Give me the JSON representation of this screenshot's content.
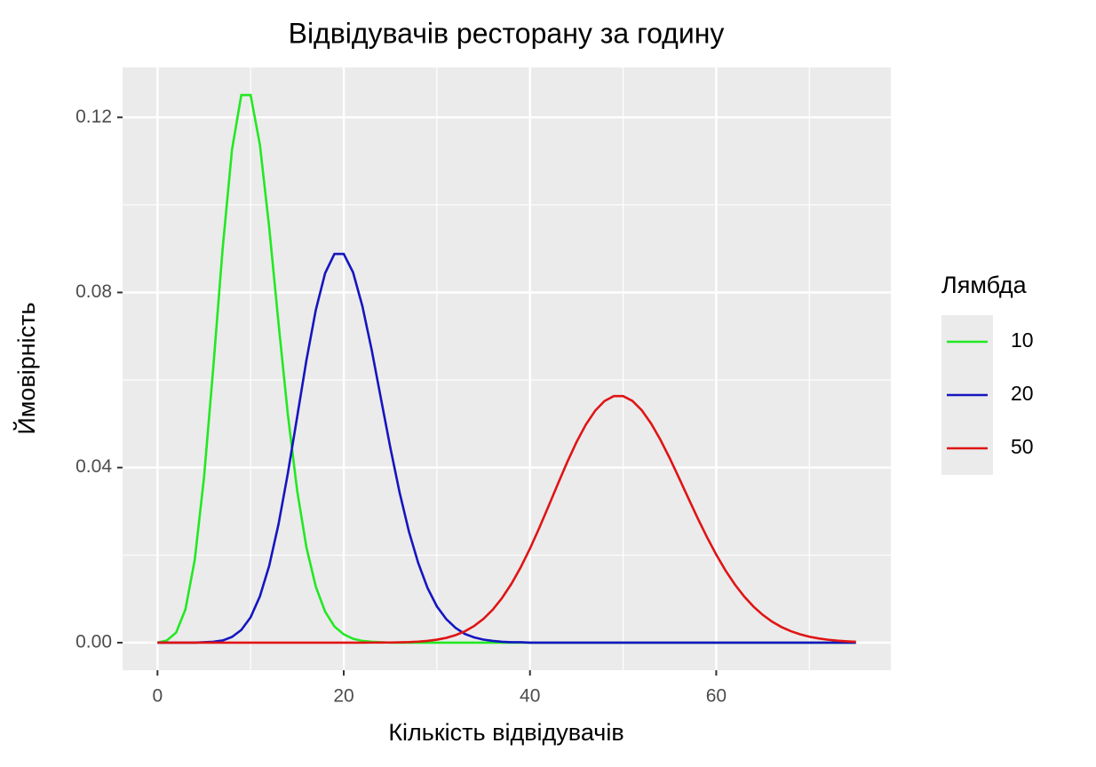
{
  "chart_data": {
    "type": "line",
    "title": "Відвідувачів ресторану за годину",
    "x_label": "Кількість відвідувачів",
    "y_label": "Ймовірність",
    "legend_title": "Лямбда",
    "legend_position": "right",
    "grid": true,
    "panel_color": "#ebebeb",
    "xlim": [
      -3.75,
      78.75
    ],
    "ylim": [
      -0.0063,
      0.1314
    ],
    "xticks": [
      0,
      20,
      40,
      60
    ],
    "xminor": [
      10,
      30,
      50,
      70
    ],
    "yticks": [
      {
        "value": 0,
        "label": "0.00"
      },
      {
        "value": 0.04,
        "label": "0.04"
      },
      {
        "value": 0.08,
        "label": "0.08"
      },
      {
        "value": 0.12,
        "label": "0.12"
      }
    ],
    "yminor": [
      0.02,
      0.06,
      0.1
    ],
    "x": [
      0,
      1,
      2,
      3,
      4,
      5,
      6,
      7,
      8,
      9,
      10,
      11,
      12,
      13,
      14,
      15,
      16,
      17,
      18,
      19,
      20,
      21,
      22,
      23,
      24,
      25,
      26,
      27,
      28,
      29,
      30,
      31,
      32,
      33,
      34,
      35,
      36,
      37,
      38,
      39,
      40,
      41,
      42,
      43,
      44,
      45,
      46,
      47,
      48,
      49,
      50,
      51,
      52,
      53,
      54,
      55,
      56,
      57,
      58,
      59,
      60,
      61,
      62,
      63,
      64,
      65,
      66,
      67,
      68,
      69,
      70,
      71,
      72,
      73,
      74,
      75
    ],
    "series": [
      {
        "name": "10",
        "color": "#22e822",
        "values": [
          0,
          0.0005,
          0.0023,
          0.0076,
          0.0189,
          0.0378,
          0.0631,
          0.0901,
          0.1126,
          0.1251,
          0.1251,
          0.1137,
          0.0948,
          0.0729,
          0.0521,
          0.0347,
          0.0217,
          0.0128,
          0.0071,
          0.0037,
          0.0019,
          0.0009,
          0.0004,
          0.0002,
          0.0001,
          0,
          0,
          0,
          0,
          0,
          0,
          0,
          0,
          0,
          0,
          0,
          0,
          0,
          0,
          0,
          0,
          0,
          0,
          0,
          0,
          0,
          0,
          0,
          0,
          0,
          0,
          0,
          0,
          0,
          0,
          0,
          0,
          0,
          0,
          0,
          0,
          0,
          0,
          0,
          0,
          0,
          0,
          0,
          0,
          0,
          0,
          0,
          0,
          0,
          0,
          0
        ]
      },
      {
        "name": "20",
        "color": "#1515c0",
        "values": [
          0,
          0,
          0,
          0,
          0,
          0.0001,
          0.0002,
          0.0005,
          0.0013,
          0.0029,
          0.0058,
          0.0106,
          0.0176,
          0.0271,
          0.0387,
          0.0516,
          0.0646,
          0.076,
          0.0844,
          0.0888,
          0.0888,
          0.0846,
          0.0769,
          0.0669,
          0.0557,
          0.0446,
          0.0343,
          0.0254,
          0.0182,
          0.0125,
          0.0083,
          0.0054,
          0.0034,
          0.002,
          0.0012,
          0.0007,
          0.0004,
          0.0002,
          0.0001,
          0.0001,
          0,
          0,
          0,
          0,
          0,
          0,
          0,
          0,
          0,
          0,
          0,
          0,
          0,
          0,
          0,
          0,
          0,
          0,
          0,
          0,
          0,
          0,
          0,
          0,
          0,
          0,
          0,
          0,
          0,
          0,
          0,
          0,
          0,
          0,
          0,
          0
        ]
      },
      {
        "name": "50",
        "color": "#e01414",
        "values": [
          0,
          0,
          0,
          0,
          0,
          0,
          0,
          0,
          0,
          0,
          0,
          0,
          0,
          0,
          0,
          0,
          0,
          0,
          0,
          0,
          0,
          0,
          0,
          1e-05,
          2e-05,
          4e-05,
          7e-05,
          0.00013,
          0.00024,
          0.00041,
          0.00068,
          0.00109,
          0.00171,
          0.00259,
          0.0038,
          0.00543,
          0.00754,
          0.0102,
          0.01342,
          0.0172,
          0.0215,
          0.02622,
          0.03121,
          0.03629,
          0.04124,
          0.04583,
          0.04981,
          0.05299,
          0.0552,
          0.05633,
          0.05633,
          0.05523,
          0.0531,
          0.05009,
          0.04638,
          0.04217,
          0.03765,
          0.03303,
          0.02847,
          0.02413,
          0.02011,
          0.01648,
          0.01329,
          0.01055,
          0.00824,
          0.00634,
          0.0048,
          0.00358,
          0.00263,
          0.00191,
          0.00136,
          0.00096,
          0.00067,
          0.00046,
          0.00031,
          0.0002
        ]
      }
    ]
  }
}
